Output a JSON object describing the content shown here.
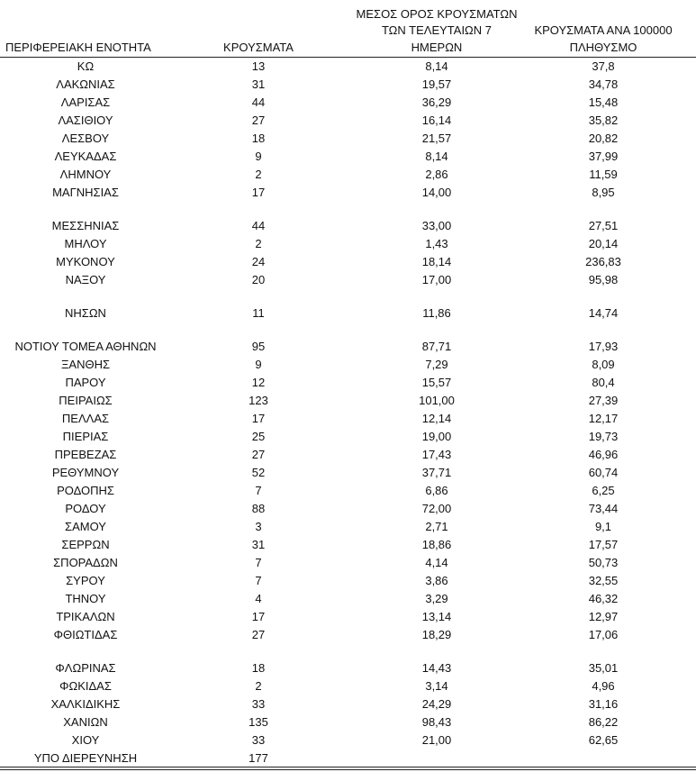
{
  "header": {
    "col_region": "ΠΕΡΙΦΕΡΕΙΑΚΗ ΕΝΟΤΗΤΑ",
    "col_cases": "ΚΡΟΥΣΜΑΤΑ",
    "col_avg_line1": "ΜΕΣΟΣ ΟΡΟΣ ΚΡΟΥΣΜΑΤΩΝ",
    "col_avg_line2": "ΤΩΝ ΤΕΛΕΥΤΑΙΩΝ 7",
    "col_avg_line3": "ΗΜΕΡΩΝ",
    "col_per100k_line1": "ΚΡΟΥΣΜΑΤΑ ΑΝΑ 100000",
    "col_per100k_line2": "ΠΛΗΘΥΣΜΟ"
  },
  "groups": [
    [
      [
        "ΚΩ",
        "13",
        "8,14",
        "37,8"
      ],
      [
        "ΛΑΚΩΝΙΑΣ",
        "31",
        "19,57",
        "34,78"
      ],
      [
        "ΛΑΡΙΣΑΣ",
        "44",
        "36,29",
        "15,48"
      ],
      [
        "ΛΑΣΙΘΙΟΥ",
        "27",
        "16,14",
        "35,82"
      ],
      [
        "ΛΕΣΒΟΥ",
        "18",
        "21,57",
        "20,82"
      ],
      [
        "ΛΕΥΚΑΔΑΣ",
        "9",
        "8,14",
        "37,99"
      ],
      [
        "ΛΗΜΝΟΥ",
        "2",
        "2,86",
        "11,59"
      ],
      [
        "ΜΑΓΝΗΣΙΑΣ",
        "17",
        "14,00",
        "8,95"
      ]
    ],
    [
      [
        "ΜΕΣΣΗΝΙΑΣ",
        "44",
        "33,00",
        "27,51"
      ],
      [
        "ΜΗΛΟΥ",
        "2",
        "1,43",
        "20,14"
      ],
      [
        "ΜΥΚΟΝΟΥ",
        "24",
        "18,14",
        "236,83"
      ],
      [
        "ΝΑΞΟΥ",
        "20",
        "17,00",
        "95,98"
      ]
    ],
    [
      [
        "ΝΗΣΩΝ",
        "11",
        "11,86",
        "14,74"
      ]
    ],
    [
      [
        "ΝΟΤΙΟΥ ΤΟΜΕΑ ΑΘΗΝΩΝ",
        "95",
        "87,71",
        "17,93"
      ],
      [
        "ΞΑΝΘΗΣ",
        "9",
        "7,29",
        "8,09"
      ],
      [
        "ΠΑΡΟΥ",
        "12",
        "15,57",
        "80,4"
      ],
      [
        "ΠΕΙΡΑΙΩΣ",
        "123",
        "101,00",
        "27,39"
      ],
      [
        "ΠΕΛΛΑΣ",
        "17",
        "12,14",
        "12,17"
      ],
      [
        "ΠΙΕΡΙΑΣ",
        "25",
        "19,00",
        "19,73"
      ],
      [
        "ΠΡΕΒΕΖΑΣ",
        "27",
        "17,43",
        "46,96"
      ],
      [
        "ΡΕΘΥΜΝΟΥ",
        "52",
        "37,71",
        "60,74"
      ],
      [
        "ΡΟΔΟΠΗΣ",
        "7",
        "6,86",
        "6,25"
      ],
      [
        "ΡΟΔΟΥ",
        "88",
        "72,00",
        "73,44"
      ],
      [
        "ΣΑΜΟΥ",
        "3",
        "2,71",
        "9,1"
      ],
      [
        "ΣΕΡΡΩΝ",
        "31",
        "18,86",
        "17,57"
      ],
      [
        "ΣΠΟΡΑΔΩΝ",
        "7",
        "4,14",
        "50,73"
      ],
      [
        "ΣΥΡΟΥ",
        "7",
        "3,86",
        "32,55"
      ],
      [
        "ΤΗΝΟΥ",
        "4",
        "3,29",
        "46,32"
      ],
      [
        "ΤΡΙΚΑΛΩΝ",
        "17",
        "13,14",
        "12,97"
      ],
      [
        "ΦΘΙΩΤΙΔΑΣ",
        "27",
        "18,29",
        "17,06"
      ]
    ],
    [
      [
        "ΦΛΩΡΙΝΑΣ",
        "18",
        "14,43",
        "35,01"
      ],
      [
        "ΦΩΚΙΔΑΣ",
        "2",
        "3,14",
        "4,96"
      ],
      [
        "ΧΑΛΚΙΔΙΚΗΣ",
        "33",
        "24,29",
        "31,16"
      ],
      [
        "ΧΑΝΙΩΝ",
        "135",
        "98,43",
        "86,22"
      ],
      [
        "ΧΙΟΥ",
        "33",
        "21,00",
        "62,65"
      ],
      [
        "ΥΠΟ ΔΙΕΡΕΥΝΗΣΗ",
        "177",
        "",
        ""
      ]
    ]
  ]
}
